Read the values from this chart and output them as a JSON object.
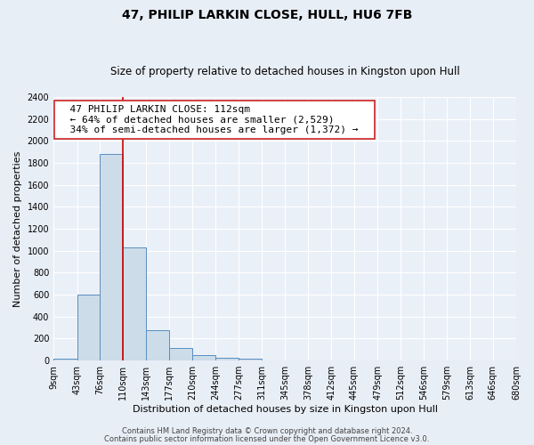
{
  "title": "47, PHILIP LARKIN CLOSE, HULL, HU6 7FB",
  "subtitle": "Size of property relative to detached houses in Kingston upon Hull",
  "xlabel": "Distribution of detached houses by size in Kingston upon Hull",
  "ylabel": "Number of detached properties",
  "bin_edges": [
    9,
    43,
    76,
    110,
    143,
    177,
    210,
    244,
    277,
    311,
    345,
    378,
    412,
    445,
    479,
    512,
    546,
    579,
    613,
    646,
    680
  ],
  "bar_heights": [
    20,
    600,
    1880,
    1030,
    280,
    115,
    50,
    25,
    20,
    0,
    0,
    0,
    0,
    0,
    0,
    0,
    0,
    0,
    0,
    0
  ],
  "bar_color": "#ccdce8",
  "bar_edgecolor": "#5a8fc0",
  "bar_linewidth": 0.7,
  "vline_x": 110,
  "vline_color": "#cc0000",
  "vline_linewidth": 1.2,
  "ylim": [
    0,
    2400
  ],
  "yticks": [
    0,
    200,
    400,
    600,
    800,
    1000,
    1200,
    1400,
    1600,
    1800,
    2000,
    2200,
    2400
  ],
  "annotation_title": "47 PHILIP LARKIN CLOSE: 112sqm",
  "annotation_line1": "← 64% of detached houses are smaller (2,529)",
  "annotation_line2": "34% of semi-detached houses are larger (1,372) →",
  "footer1": "Contains HM Land Registry data © Crown copyright and database right 2024.",
  "footer2": "Contains public sector information licensed under the Open Government Licence v3.0.",
  "fig_bg_color": "#e8eef6",
  "plot_bg_color": "#eaf0f8",
  "grid_color": "#ffffff",
  "title_fontsize": 10,
  "subtitle_fontsize": 8.5,
  "xlabel_fontsize": 8,
  "ylabel_fontsize": 8,
  "tick_fontsize": 7,
  "annotation_fontsize": 8,
  "footer_fontsize": 6
}
